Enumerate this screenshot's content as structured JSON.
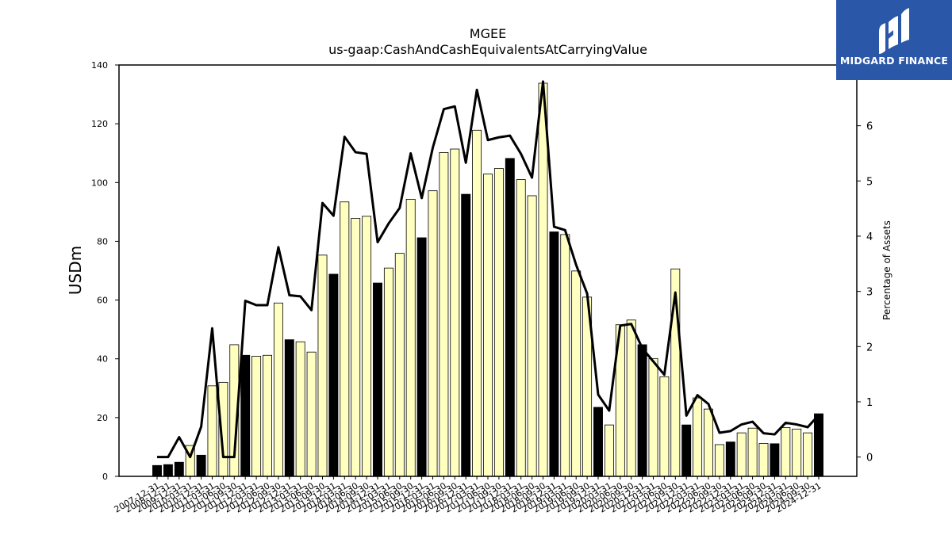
{
  "logo": {
    "text": "MIDGARD FINANCE",
    "bg_color": "#2b57a8",
    "icon": "midgard-logo-icon"
  },
  "chart_data": {
    "type": "bar",
    "title": "MGEE",
    "subtitle": "us-gaap:CashAndCashEquivalentsAtCarryingValue",
    "ylabel": "USDm",
    "y2label": "Percentage of Assets",
    "ylim": [
      0,
      140
    ],
    "y2lim": [
      -0.35,
      7.1
    ],
    "yticks": [
      0,
      20,
      40,
      60,
      80,
      100,
      120,
      140
    ],
    "y2ticks": [
      0,
      1,
      2,
      3,
      4,
      5,
      6
    ],
    "colors": {
      "annual_bar": "#000000",
      "quarter_bar": "#ffffc0",
      "bar_edge": "#000000",
      "line": "#000000"
    },
    "categories": [
      "2007-12-31",
      "2008-12-31",
      "2009-12-31",
      "2010-03-31",
      "2010-12-31",
      "2011-03-31",
      "2011-06-30",
      "2011-09-30",
      "2011-12-31",
      "2012-03-31",
      "2012-06-30",
      "2012-09-30",
      "2012-12-31",
      "2013-03-31",
      "2013-06-30",
      "2013-09-30",
      "2013-12-31",
      "2014-03-31",
      "2014-06-30",
      "2014-09-30",
      "2014-12-31",
      "2015-03-31",
      "2015-06-30",
      "2015-09-30",
      "2015-12-31",
      "2016-03-31",
      "2016-06-30",
      "2016-09-30",
      "2016-12-31",
      "2017-03-31",
      "2017-06-30",
      "2017-09-30",
      "2017-12-31",
      "2018-03-31",
      "2018-06-30",
      "2018-09-30",
      "2018-12-31",
      "2019-03-31",
      "2019-06-30",
      "2019-09-30",
      "2019-12-31",
      "2020-03-31",
      "2020-06-30",
      "2020-09-30",
      "2020-12-31",
      "2021-03-31",
      "2021-06-30",
      "2021-09-30",
      "2021-12-31",
      "2022-03-31",
      "2022-06-30",
      "2022-09-30",
      "2022-12-31",
      "2023-03-31",
      "2023-06-30",
      "2023-09-30",
      "2023-12-31",
      "2024-03-31",
      "2024-06-30",
      "2024-09-30",
      "2024-12-31"
    ],
    "annual": [
      true,
      true,
      true,
      false,
      true,
      false,
      false,
      false,
      true,
      false,
      false,
      false,
      true,
      false,
      false,
      false,
      true,
      false,
      false,
      false,
      true,
      false,
      false,
      false,
      true,
      false,
      false,
      false,
      true,
      false,
      false,
      false,
      true,
      false,
      false,
      false,
      true,
      false,
      false,
      false,
      true,
      false,
      false,
      false,
      true,
      false,
      false,
      false,
      true,
      false,
      false,
      false,
      true,
      false,
      false,
      false,
      true,
      false,
      false,
      false,
      true
    ],
    "series": [
      {
        "name": "Cash and cash equivalents",
        "values": [
          3.7,
          4.0,
          4.8,
          10.5,
          7.2,
          30.8,
          32.0,
          44.8,
          41.2,
          40.9,
          41.2,
          59.0,
          46.5,
          45.8,
          42.3,
          75.3,
          68.8,
          93.4,
          87.8,
          88.5,
          65.8,
          70.9,
          75.9,
          94.3,
          81.2,
          97.2,
          110.2,
          111.4,
          96.0,
          117.8,
          102.9,
          104.8,
          108.2,
          101.0,
          95.5,
          133.8,
          83.2,
          82.3,
          69.9,
          61.0,
          23.5,
          17.5,
          51.6,
          53.2,
          44.8,
          40.1,
          33.9,
          70.6,
          17.5,
          26.7,
          22.9,
          10.8,
          11.7,
          14.8,
          16.4,
          11.2,
          11.1,
          16.6,
          16.1,
          14.8,
          21.3
        ]
      },
      {
        "name": "Percentage of Assets",
        "values": [
          0.0,
          0.0,
          0.36,
          0.0,
          0.55,
          2.33,
          0.0,
          0.0,
          2.83,
          2.75,
          2.75,
          3.8,
          2.93,
          2.91,
          2.66,
          4.6,
          4.37,
          5.8,
          5.52,
          5.49,
          3.89,
          4.23,
          4.51,
          5.5,
          4.69,
          5.6,
          6.3,
          6.35,
          5.33,
          6.65,
          5.74,
          5.79,
          5.82,
          5.49,
          5.06,
          6.8,
          4.17,
          4.11,
          3.48,
          2.96,
          1.13,
          0.84,
          2.38,
          2.41,
          1.97,
          1.73,
          1.49,
          2.98,
          0.75,
          1.12,
          0.96,
          0.44,
          0.47,
          0.59,
          0.64,
          0.43,
          0.41,
          0.62,
          0.59,
          0.54,
          0.76
        ]
      }
    ]
  }
}
